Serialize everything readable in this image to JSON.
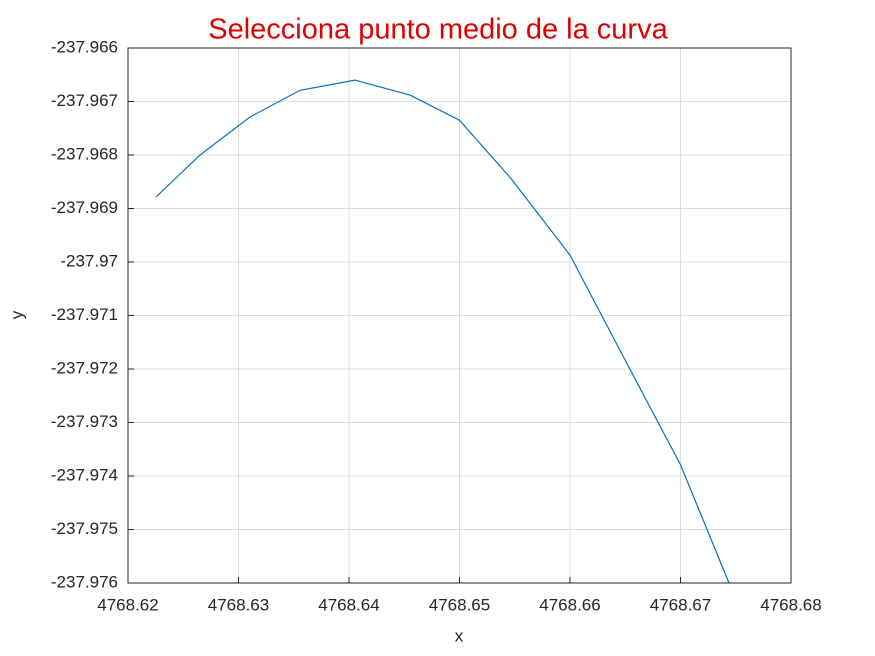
{
  "chart_data": {
    "type": "line",
    "title": "Selecciona punto medio de la curva",
    "x_label": "x",
    "y_label": "y",
    "x": [
      4768.62253,
      4768.62652,
      4768.63104,
      4768.63557,
      4768.64054,
      4768.64552,
      4768.65,
      4768.65462,
      4768.66,
      4768.66452,
      4768.67,
      4768.67439
    ],
    "values": [
      -237.968785,
      -237.968,
      -237.96729,
      -237.96679,
      -237.9666,
      -237.96688,
      -237.96735,
      -237.96843,
      -237.96987,
      -237.97165,
      -237.97379,
      -237.976
    ],
    "color": "#0072bd",
    "xlim": [
      4768.62,
      4768.68
    ],
    "xticks": [
      4768.62,
      4768.63,
      4768.64,
      4768.65,
      4768.66,
      4768.67,
      4768.68
    ],
    "ylim": [
      -237.976,
      -237.966
    ],
    "yticks": [
      -237.976,
      -237.975,
      -237.974,
      -237.973,
      -237.972,
      -237.971,
      -237.97,
      -237.969,
      -237.968,
      -237.967,
      -237.966
    ],
    "grid": true
  }
}
